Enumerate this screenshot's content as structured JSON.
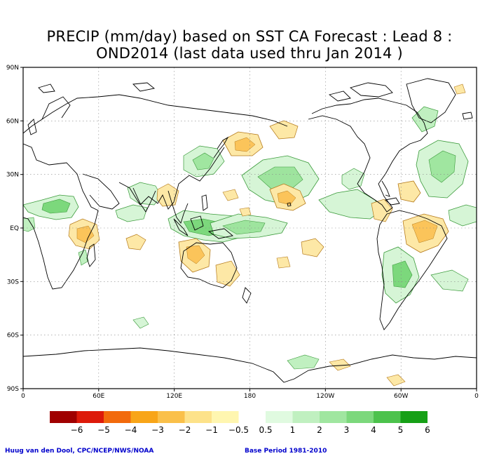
{
  "title": {
    "line1": "PRECIP (mm/day) based on SST CA Forecast : Lead 8 :",
    "line2": "OND2014 (last data used thru Jan 2014 )"
  },
  "axes": {
    "lat_labels": [
      "90N",
      "60N",
      "30N",
      "EQ",
      "30S",
      "60S",
      "90S"
    ],
    "lon_labels": [
      "0",
      "60E",
      "120E",
      "180",
      "120W",
      "60W",
      "0"
    ]
  },
  "legend": {
    "labels": [
      "−6",
      "−5",
      "−4",
      "−3",
      "−2",
      "−1",
      "−0.5",
      "0.5",
      "1",
      "2",
      "3",
      "4",
      "5",
      "6"
    ],
    "colors": [
      "#a00000",
      "#dd1a0a",
      "#f26a0c",
      "#f8a518",
      "#fac04a",
      "#fde28a",
      "#fff6b0",
      "#ffffff",
      "#e0fae0",
      "#c0f0c0",
      "#a0e6a0",
      "#7cd87c",
      "#4cc24c",
      "#16a016"
    ]
  },
  "map_colors": {
    "dry_light": "#fde8a6",
    "dry_mid": "#fbc45a",
    "wet_light": "#d6f5d6",
    "wet_mid": "#9ee49e",
    "wet_dark": "#5ccc5c",
    "contour_wet": "#3a9a3a",
    "contour_dry": "#b57a1a",
    "coast": "#000000",
    "grid": "#888888"
  },
  "footer": {
    "credit": "Huug van den Dool, CPC/NCEP/NWS/NOAA",
    "base_period": "Base Period 1981-2010"
  }
}
